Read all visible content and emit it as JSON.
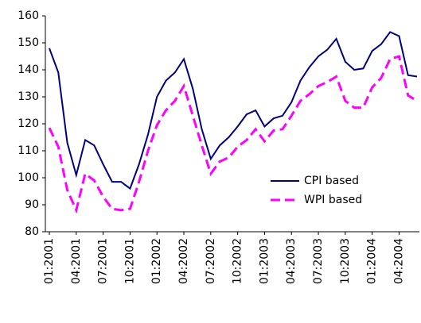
{
  "chart_data": {
    "type": "line",
    "categories": [
      "01:2001",
      null,
      null,
      "04:2001",
      null,
      null,
      "07:2001",
      null,
      null,
      "10:2001",
      null,
      null,
      "01:2002",
      null,
      null,
      "04:2002",
      null,
      null,
      "07:2002",
      null,
      null,
      "10:2002",
      null,
      null,
      "01:2003",
      null,
      null,
      "04:2003",
      null,
      null,
      "07:2003",
      null,
      null,
      "10:2003",
      null,
      null,
      "01:2004",
      null,
      null,
      "04:2004",
      null,
      null
    ],
    "series": [
      {
        "name": "CPI based",
        "color": "#000080",
        "dash": false,
        "values": [
          148,
          139,
          113,
          101,
          114,
          112,
          105,
          98.5,
          98.5,
          96,
          105,
          116,
          130,
          136,
          139,
          144,
          133,
          118,
          107,
          112,
          115,
          119,
          123.5,
          125,
          119,
          122,
          123,
          128,
          136,
          141,
          145,
          147.5,
          151.5,
          143,
          140,
          140.5,
          147,
          149.5,
          154,
          152.5,
          138,
          137.5
        ]
      },
      {
        "name": "WPI based",
        "color": "#ff00ff",
        "dash": true,
        "values": [
          118.5,
          111.5,
          95.5,
          88,
          101.5,
          99,
          93,
          88.5,
          88,
          88.5,
          98.5,
          110,
          119.5,
          125,
          128.5,
          134,
          123,
          112,
          101.5,
          106,
          107.5,
          111.5,
          114,
          118,
          113.5,
          117.5,
          118,
          123,
          128.5,
          131,
          134,
          135.5,
          137.5,
          128.5,
          126,
          126,
          133.5,
          137,
          144,
          145,
          130.5,
          128.5
        ]
      }
    ],
    "ylim": [
      80,
      160
    ],
    "yticks": [
      80,
      90,
      100,
      110,
      120,
      130,
      140,
      150,
      160
    ],
    "grid": false,
    "legend": "lower right"
  }
}
